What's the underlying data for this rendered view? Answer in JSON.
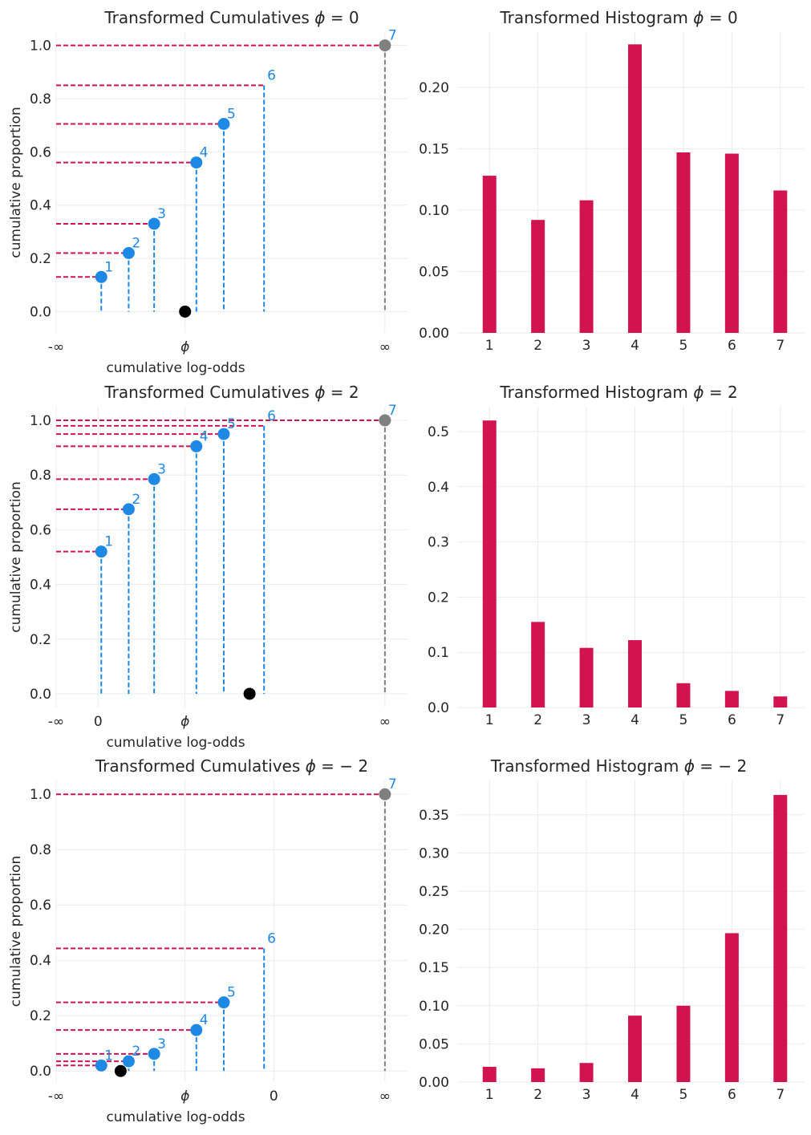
{
  "colors": {
    "cumulative_point": "#1e88e5",
    "horizontal_dash": "#d1134f",
    "bar": "#d1134f",
    "infinity_point": "#808080",
    "phi_point": "#000000",
    "grid": "#ebebeb",
    "text": "#262626"
  },
  "chart_data": [
    {
      "type": "scatter",
      "title": "Transformed Cumulatives",
      "title_param": "0",
      "xlabel": "cumulative log-odds",
      "ylabel": "cumulative proportion",
      "ylim": [
        -0.08,
        1.05
      ],
      "yticks": [
        "0.0",
        "0.2",
        "0.4",
        "0.6",
        "0.8",
        "1.0"
      ],
      "xticks": [
        {
          "label": "-∞",
          "x": -4.0
        },
        {
          "label": "ϕ",
          "x": 0.0,
          "italic": true
        },
        {
          "label": "∞",
          "x": 6.2
        }
      ],
      "xlim": [
        -4.0,
        6.9
      ],
      "phi": 0.0,
      "points": [
        {
          "label": "1",
          "x": -2.6,
          "y": 0.13
        },
        {
          "label": "2",
          "x": -1.75,
          "y": 0.22
        },
        {
          "label": "3",
          "x": -0.96,
          "y": 0.33
        },
        {
          "label": "4",
          "x": 0.35,
          "y": 0.56
        },
        {
          "label": "5",
          "x": 1.2,
          "y": 0.705
        },
        {
          "label": "6",
          "x": 2.45,
          "y": 0.85,
          "no_marker": true
        },
        {
          "label": "7",
          "x": 6.2,
          "y": 1.0,
          "infinity": true
        }
      ],
      "grid": true
    },
    {
      "type": "bar",
      "title": "Transformed Histogram",
      "title_param": "0",
      "categories": [
        "1",
        "2",
        "3",
        "4",
        "5",
        "6",
        "7"
      ],
      "values": [
        0.128,
        0.092,
        0.108,
        0.235,
        0.147,
        0.146,
        0.116
      ],
      "ylim": [
        0,
        0.245
      ],
      "yticks": [
        "0.00",
        "0.05",
        "0.10",
        "0.15",
        "0.20"
      ],
      "ytick_values": [
        0,
        0.05,
        0.1,
        0.15,
        0.2
      ],
      "grid": true
    },
    {
      "type": "scatter",
      "title": "Transformed Cumulatives",
      "title_param": "2",
      "xlabel": "cumulative log-odds",
      "ylabel": "cumulative proportion",
      "ylim": [
        -0.05,
        1.05
      ],
      "yticks": [
        "0.0",
        "0.2",
        "0.4",
        "0.6",
        "0.8",
        "1.0"
      ],
      "xticks": [
        {
          "label": "-∞",
          "x": -4.0
        },
        {
          "label": "0",
          "x": -2.7
        },
        {
          "label": "ϕ",
          "x": 0.0,
          "italic": true
        },
        {
          "label": "∞",
          "x": 6.2
        }
      ],
      "xlim": [
        -4.0,
        6.9
      ],
      "phi": 2.0,
      "points": [
        {
          "label": "1",
          "x": -2.6,
          "y": 0.52
        },
        {
          "label": "2",
          "x": -1.75,
          "y": 0.675
        },
        {
          "label": "3",
          "x": -0.96,
          "y": 0.785
        },
        {
          "label": "4",
          "x": 0.35,
          "y": 0.905
        },
        {
          "label": "5",
          "x": 1.2,
          "y": 0.95
        },
        {
          "label": "6",
          "x": 2.45,
          "y": 0.98,
          "no_marker": true
        },
        {
          "label": "7",
          "x": 6.2,
          "y": 1.0,
          "infinity": true
        }
      ],
      "grid": true
    },
    {
      "type": "bar",
      "title": "Transformed Histogram",
      "title_param": "2",
      "categories": [
        "1",
        "2",
        "3",
        "4",
        "5",
        "6",
        "7"
      ],
      "values": [
        0.52,
        0.155,
        0.108,
        0.122,
        0.044,
        0.03,
        0.02
      ],
      "ylim": [
        0,
        0.545
      ],
      "yticks": [
        "0.0",
        "0.1",
        "0.2",
        "0.3",
        "0.4",
        "0.5"
      ],
      "ytick_values": [
        0,
        0.1,
        0.2,
        0.3,
        0.4,
        0.5
      ],
      "grid": true
    },
    {
      "type": "scatter",
      "title": "Transformed Cumulatives",
      "title_param": "-2",
      "xlabel": "cumulative log-odds",
      "ylabel": "cumulative proportion",
      "ylim": [
        -0.04,
        1.05
      ],
      "yticks": [
        "0.0",
        "0.2",
        "0.4",
        "0.6",
        "0.8",
        "1.0"
      ],
      "xticks": [
        {
          "label": "-∞",
          "x": -4.0
        },
        {
          "label": "ϕ",
          "x": 0.0,
          "italic": true
        },
        {
          "label": "0",
          "x": 2.75
        },
        {
          "label": "∞",
          "x": 6.2
        }
      ],
      "xlim": [
        -4.0,
        6.9
      ],
      "phi": -2.0,
      "points": [
        {
          "label": "1",
          "x": -2.6,
          "y": 0.02
        },
        {
          "label": "2",
          "x": -1.75,
          "y": 0.035
        },
        {
          "label": "3",
          "x": -0.96,
          "y": 0.062
        },
        {
          "label": "4",
          "x": 0.35,
          "y": 0.148
        },
        {
          "label": "5",
          "x": 1.2,
          "y": 0.248
        },
        {
          "label": "6",
          "x": 2.45,
          "y": 0.443,
          "no_marker": true
        },
        {
          "label": "7",
          "x": 6.2,
          "y": 1.0,
          "infinity": true
        }
      ],
      "grid": true
    },
    {
      "type": "bar",
      "title": "Transformed Histogram",
      "title_param": "-2",
      "categories": [
        "1",
        "2",
        "3",
        "4",
        "5",
        "6",
        "7"
      ],
      "values": [
        0.02,
        0.018,
        0.025,
        0.087,
        0.1,
        0.195,
        0.376
      ],
      "ylim": [
        0,
        0.395
      ],
      "yticks": [
        "0.00",
        "0.05",
        "0.10",
        "0.15",
        "0.20",
        "0.25",
        "0.30",
        "0.35"
      ],
      "ytick_values": [
        0,
        0.05,
        0.1,
        0.15,
        0.2,
        0.25,
        0.3,
        0.35
      ],
      "grid": true
    }
  ]
}
